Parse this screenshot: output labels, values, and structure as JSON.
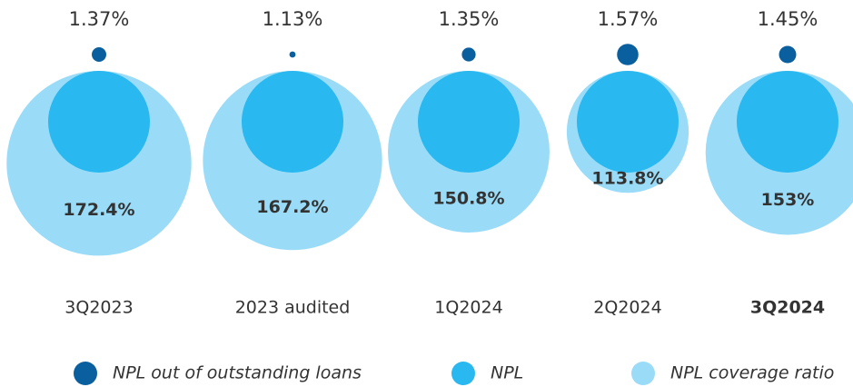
{
  "chart_data": {
    "type": "bubble",
    "categories": [
      "3Q2023",
      "2023 audited",
      "1Q2024",
      "2Q2024",
      "3Q2024"
    ],
    "series": [
      {
        "name": "NPL out of outstanding loans",
        "color": "#0a5f9e",
        "values": [
          1.37,
          1.13,
          1.35,
          1.57,
          1.45
        ],
        "value_labels": [
          "1.37%",
          "1.13%",
          "1.35%",
          "1.57%",
          "1.45%"
        ]
      },
      {
        "name": "NPL",
        "color": "#29b8ef"
      },
      {
        "name": "NPL coverage ratio",
        "color": "#9adcf8",
        "values": [
          172.4,
          167.2,
          150.8,
          113.8,
          153
        ],
        "value_labels": [
          "172.4%",
          "167.2%",
          "150.8%",
          "113.8%",
          "153%"
        ]
      }
    ]
  }
}
